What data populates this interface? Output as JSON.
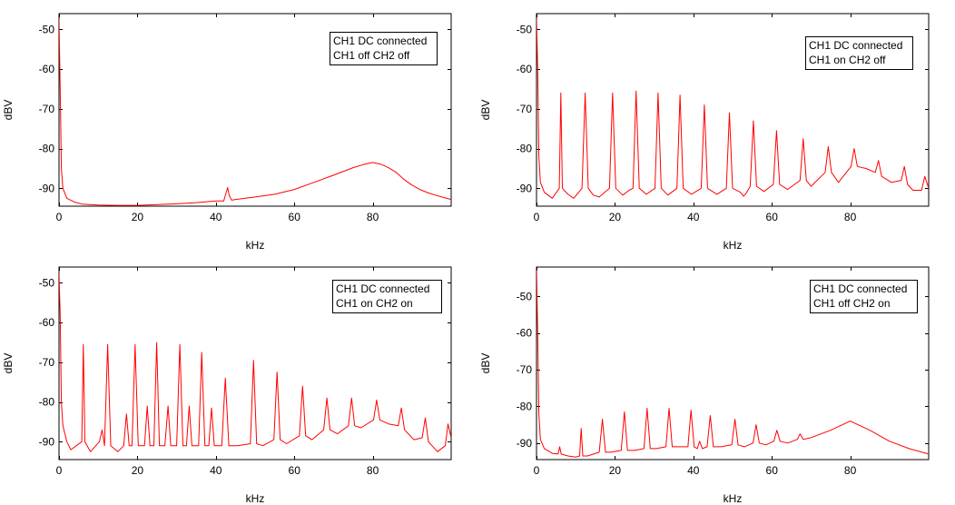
{
  "chart_data": [
    {
      "type": "line",
      "xlabel": "kHz",
      "ylabel": "dBV",
      "xlim": [
        0,
        100
      ],
      "ylim": [
        -94.5,
        -46
      ],
      "xticks": [
        0,
        20,
        40,
        60,
        80
      ],
      "yticks": [
        -50,
        -60,
        -70,
        -80,
        -90
      ],
      "legend": [
        "CH1 DC connected",
        "CH1 off CH2 off"
      ],
      "legend_position": "top-right",
      "line_color": "#ff0000",
      "series": [
        {
          "x": [
            0,
            0.3,
            0.6,
            1,
            2,
            4,
            6,
            10,
            15,
            20,
            25,
            30,
            35,
            40,
            42,
            42.5,
            43,
            43.4,
            44,
            45,
            50,
            55,
            60,
            65,
            70,
            75,
            78,
            80,
            82,
            84,
            86,
            88,
            90,
            92,
            94,
            96,
            98,
            100
          ],
          "y": [
            -47.5,
            -65,
            -85,
            -90,
            -92.5,
            -93.5,
            -94,
            -94.2,
            -94.3,
            -94.3,
            -94.1,
            -93.9,
            -93.6,
            -93.2,
            -93.2,
            -91.5,
            -89.8,
            -91.8,
            -93,
            -92.8,
            -92.2,
            -91.5,
            -90.3,
            -88.5,
            -86.7,
            -84.8,
            -83.9,
            -83.5,
            -83.9,
            -84.8,
            -86,
            -87.8,
            -89.2,
            -90.3,
            -91.1,
            -91.7,
            -92.3,
            -92.8
          ]
        }
      ]
    },
    {
      "type": "line",
      "xlabel": "kHz",
      "ylabel": "dBV",
      "xlim": [
        0,
        100
      ],
      "ylim": [
        -94.5,
        -46
      ],
      "xticks": [
        0,
        20,
        40,
        60,
        80
      ],
      "yticks": [
        -50,
        -60,
        -70,
        -80,
        -90
      ],
      "legend": [
        "CH1 DC connected",
        "CH1 on CH2 off"
      ],
      "legend_position": "top-right",
      "line_color": "#ff0000",
      "series": [
        {
          "x": [
            0,
            0.3,
            0.6,
            1,
            2,
            4,
            5.8,
            6.2,
            6.6,
            8,
            9.5,
            11.6,
            12.4,
            13.2,
            14.5,
            16,
            18.6,
            19.4,
            20.2,
            22,
            23.6,
            24.6,
            25.4,
            26.2,
            28,
            30.2,
            31,
            31.8,
            33.5,
            35.8,
            36.6,
            37.4,
            39.5,
            42,
            42.8,
            43.6,
            46,
            48.4,
            49.2,
            50,
            52,
            52.8,
            53.5,
            54.5,
            55.3,
            56.1,
            58,
            60.4,
            61.2,
            62,
            64,
            67.2,
            68,
            68.8,
            70,
            73.6,
            74.4,
            75.2,
            77,
            80.2,
            81,
            81.8,
            84,
            86.4,
            87.2,
            88,
            90.5,
            93,
            93.8,
            94.6,
            96,
            98.2,
            99,
            100
          ],
          "y": [
            -47.5,
            -60,
            -82,
            -88.5,
            -91,
            -92.5,
            -90,
            -66,
            -90,
            -91.5,
            -92.5,
            -90,
            -66,
            -90,
            -91.7,
            -92.2,
            -90,
            -66,
            -90,
            -91.7,
            -90.5,
            -90,
            -65.5,
            -90,
            -91.5,
            -90,
            -66,
            -90,
            -91.7,
            -90,
            -66.5,
            -90,
            -91.5,
            -90,
            -69,
            -90,
            -91.5,
            -90,
            -71,
            -90,
            -91,
            -92,
            -91.2,
            -89.5,
            -73,
            -89.5,
            -90.8,
            -89,
            -75.5,
            -89,
            -90.3,
            -88,
            -77.5,
            -88,
            -89.5,
            -86,
            -79.5,
            -86,
            -88.5,
            -84.5,
            -80,
            -84.5,
            -85,
            -86,
            -83,
            -87,
            -88.5,
            -88,
            -84.5,
            -89,
            -90.5,
            -90.5,
            -87,
            -90
          ]
        }
      ]
    },
    {
      "type": "line",
      "xlabel": "kHz",
      "ylabel": "dBV",
      "xlim": [
        0,
        100
      ],
      "ylim": [
        -94.5,
        -46
      ],
      "xticks": [
        0,
        20,
        40,
        60,
        80
      ],
      "yticks": [
        -50,
        -60,
        -70,
        -80,
        -90
      ],
      "legend": [
        "CH1 DC connected",
        "CH1 on CH2 on"
      ],
      "legend_position": "top-right",
      "line_color": "#ff0000",
      "series": [
        {
          "x": [
            0,
            0.3,
            0.6,
            1,
            2,
            3,
            5.8,
            6.2,
            6.6,
            8,
            10.3,
            11,
            11.6,
            12.4,
            13.2,
            15,
            16.5,
            17.2,
            17.9,
            18.6,
            19.4,
            20.2,
            21.8,
            22.5,
            23.2,
            24.2,
            24.9,
            25.6,
            27,
            27.8,
            28.5,
            30,
            30.8,
            31.6,
            32.5,
            33.2,
            33.9,
            35.6,
            36.4,
            37.2,
            38.2,
            38.9,
            39.6,
            41.5,
            42.4,
            43.3,
            45.5,
            48.8,
            49.6,
            50.4,
            52,
            54.8,
            55.6,
            56.4,
            58,
            61.3,
            62.1,
            62.9,
            64.5,
            67.5,
            68.3,
            69.1,
            71,
            73.8,
            74.6,
            75.4,
            77,
            80.2,
            81,
            81.8,
            84,
            86.5,
            87.3,
            88.1,
            90.5,
            92.6,
            93.4,
            94.2,
            96.5,
            98.5,
            99.2,
            100
          ],
          "y": [
            -47.5,
            -58,
            -80,
            -86,
            -90,
            -92,
            -90,
            -65.5,
            -90,
            -92.5,
            -90,
            -87,
            -91,
            -65.5,
            -91,
            -92.5,
            -91,
            -83,
            -91,
            -91,
            -65.5,
            -91,
            -91,
            -81,
            -91,
            -91,
            -65,
            -91,
            -91,
            -81,
            -91,
            -91,
            -65.5,
            -91,
            -91,
            -81,
            -91,
            -91,
            -67.5,
            -91,
            -91,
            -81.5,
            -91,
            -91,
            -74,
            -91,
            -91,
            -90.5,
            -69.5,
            -90.5,
            -91,
            -89.5,
            -72.5,
            -89.5,
            -90.5,
            -88.5,
            -76,
            -88.5,
            -89.5,
            -87,
            -79,
            -87,
            -88,
            -86,
            -79,
            -86,
            -86.5,
            -84.5,
            -79.5,
            -84.5,
            -85.5,
            -86,
            -81.5,
            -87,
            -89.5,
            -89,
            -84,
            -90,
            -92.5,
            -91,
            -85.5,
            -89
          ]
        }
      ]
    },
    {
      "type": "line",
      "xlabel": "kHz",
      "ylabel": "dBV",
      "xlim": [
        0,
        100
      ],
      "ylim": [
        -94.5,
        -42
      ],
      "xticks": [
        0,
        20,
        40,
        60,
        80
      ],
      "yticks": [
        -50,
        -60,
        -70,
        -80,
        -90
      ],
      "legend": [
        "CH1 DC connected",
        "CH1 off CH2 on"
      ],
      "legend_position": "top-right",
      "line_color": "#ff0000",
      "series": [
        {
          "x": [
            0,
            0.3,
            0.6,
            1,
            2,
            4,
            5.5,
            5.9,
            6.3,
            8,
            10,
            11,
            11.4,
            11.8,
            13,
            16,
            16.8,
            17.6,
            19,
            21.6,
            22.4,
            23.2,
            25,
            27.4,
            28.2,
            29,
            30.5,
            33,
            33.8,
            34.6,
            36,
            38.6,
            39.4,
            40.2,
            41,
            41.6,
            42.3,
            43.5,
            44.3,
            45.1,
            47,
            49.8,
            50.6,
            51.4,
            53,
            55.2,
            56,
            56.8,
            58.5,
            60.5,
            61.3,
            62.1,
            64,
            66.5,
            67.2,
            68,
            70,
            75,
            80,
            85,
            90,
            95,
            100
          ],
          "y": [
            -42.5,
            -60,
            -82,
            -89,
            -91.5,
            -92.8,
            -93,
            -91,
            -93,
            -93.5,
            -93.8,
            -93.5,
            -86,
            -93.5,
            -93.5,
            -92.5,
            -83.5,
            -92.5,
            -92.5,
            -92,
            -81.5,
            -92,
            -92,
            -91.5,
            -80.5,
            -91.5,
            -91.5,
            -91,
            -80.5,
            -91,
            -91,
            -91,
            -81,
            -91,
            -91.5,
            -89.5,
            -91.5,
            -91,
            -82.5,
            -91,
            -91,
            -90.5,
            -83.5,
            -90.5,
            -91,
            -90,
            -85,
            -90,
            -90.5,
            -89.5,
            -86.5,
            -89.5,
            -90,
            -89,
            -87.5,
            -89,
            -88.5,
            -86.5,
            -84,
            -86.5,
            -89.5,
            -91.5,
            -93
          ]
        }
      ]
    }
  ]
}
